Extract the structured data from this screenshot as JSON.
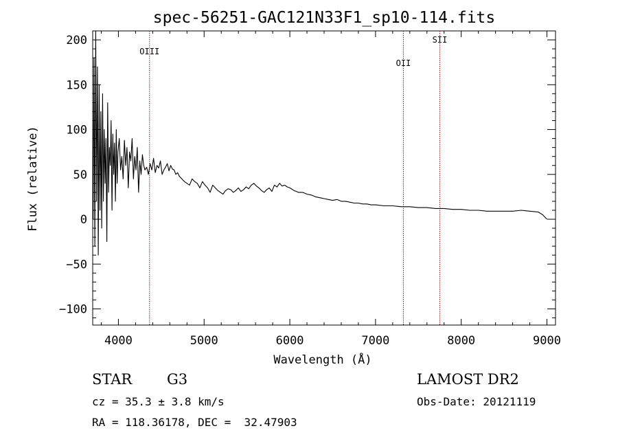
{
  "chart_data": {
    "type": "line",
    "title": "spec-56251-GAC121N33F1_sp10-114.fits",
    "xlabel": "Wavelength (Å)",
    "ylabel": "Flux (relative)",
    "xlim": [
      3700,
      9100
    ],
    "ylim": [
      -118,
      210
    ],
    "xticks": [
      4000,
      5000,
      6000,
      7000,
      8000,
      9000
    ],
    "yticks": [
      -100,
      -50,
      0,
      50,
      100,
      150,
      200
    ],
    "grid": false,
    "line_color": "#000000",
    "marker_color": "#8b1a1a",
    "lines": [
      {
        "label": "OIII",
        "x": 4363,
        "label_y": 184
      },
      {
        "label": "OII",
        "x": 7325,
        "label_y": 171
      },
      {
        "label": "SII",
        "x": 7750,
        "label_y": 197
      }
    ],
    "series": [
      {
        "x": [
          3705,
          3715,
          3725,
          3735,
          3745,
          3755,
          3765,
          3775,
          3785,
          3795,
          3805,
          3815,
          3825,
          3835,
          3845,
          3855,
          3865,
          3875,
          3885,
          3895,
          3905,
          3915,
          3925,
          3935,
          3945,
          3955,
          3965,
          3975,
          3985,
          3995,
          4010,
          4025,
          4040,
          4055,
          4070,
          4085,
          4100,
          4115,
          4130,
          4145,
          4160,
          4175,
          4190,
          4205,
          4220,
          4235,
          4250,
          4265,
          4280,
          4295,
          4310,
          4330,
          4350,
          4370,
          4390,
          4410,
          4430,
          4450,
          4470,
          4490,
          4510,
          4530,
          4550,
          4570,
          4590,
          4610,
          4630,
          4650,
          4670,
          4690,
          4710,
          4740,
          4770,
          4800,
          4830,
          4860,
          4890,
          4920,
          4950,
          4980,
          5010,
          5040,
          5070,
          5100,
          5130,
          5160,
          5190,
          5220,
          5250,
          5280,
          5310,
          5340,
          5370,
          5400,
          5430,
          5460,
          5490,
          5520,
          5550,
          5580,
          5610,
          5640,
          5670,
          5700,
          5730,
          5760,
          5790,
          5820,
          5850,
          5880,
          5910,
          5940,
          5970,
          6000,
          6050,
          6100,
          6150,
          6200,
          6250,
          6300,
          6350,
          6400,
          6450,
          6500,
          6550,
          6600,
          6650,
          6700,
          6750,
          6800,
          6850,
          6900,
          6950,
          7000,
          7100,
          7200,
          7300,
          7400,
          7500,
          7600,
          7700,
          7800,
          7900,
          8000,
          8100,
          8200,
          8300,
          8400,
          8500,
          8600,
          8700,
          8800,
          8900,
          8950,
          8980,
          9000
        ],
        "y": [
          0,
          180,
          -30,
          210,
          20,
          170,
          -40,
          150,
          10,
          120,
          -10,
          140,
          20,
          100,
          40,
          90,
          -25,
          130,
          30,
          80,
          60,
          110,
          10,
          95,
          50,
          85,
          20,
          100,
          40,
          75,
          90,
          55,
          70,
          45,
          88,
          60,
          80,
          35,
          75,
          65,
          90,
          45,
          70,
          55,
          80,
          30,
          65,
          50,
          72,
          60,
          55,
          58,
          50,
          62,
          55,
          68,
          52,
          60,
          57,
          65,
          50,
          55,
          58,
          62,
          54,
          60,
          56,
          55,
          50,
          52,
          48,
          45,
          42,
          40,
          38,
          45,
          42,
          40,
          35,
          42,
          38,
          35,
          30,
          38,
          35,
          32,
          30,
          28,
          32,
          34,
          33,
          30,
          32,
          35,
          31,
          33,
          36,
          34,
          38,
          40,
          37,
          35,
          32,
          30,
          33,
          35,
          31,
          38,
          36,
          40,
          37,
          38,
          36,
          35,
          32,
          30,
          30,
          28,
          27,
          25,
          24,
          23,
          22,
          21,
          22,
          20,
          20,
          19,
          18,
          18,
          17,
          17,
          16,
          16,
          15,
          15,
          14,
          14,
          13,
          13,
          12,
          12,
          11,
          11,
          10,
          10,
          9,
          9,
          9,
          9,
          10,
          9,
          8,
          5,
          2,
          0
        ]
      }
    ]
  },
  "footer": {
    "object": "STAR",
    "subclass": "G3",
    "survey": "LAMOST DR2",
    "cz": "cz = 35.3 ± 3.8 km/s",
    "obs_date": "Obs-Date: 20121119",
    "coords": "RA = 118.36178, DEC =  32.47903"
  }
}
